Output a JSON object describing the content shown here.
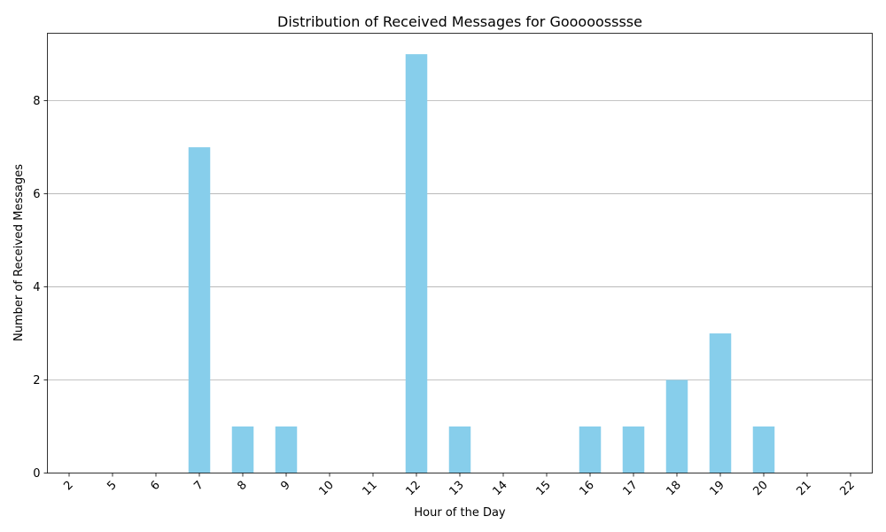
{
  "chart_data": {
    "type": "bar",
    "title": "Distribution of Received Messages for Gooooosssse",
    "xlabel": "Hour of the Day",
    "ylabel": "Number of Received Messages",
    "categories": [
      "2",
      "5",
      "6",
      "7",
      "8",
      "9",
      "10",
      "11",
      "12",
      "13",
      "14",
      "15",
      "16",
      "17",
      "18",
      "19",
      "20",
      "21",
      "22"
    ],
    "values": [
      0,
      0,
      0,
      7,
      1,
      1,
      0,
      0,
      9,
      1,
      0,
      0,
      1,
      1,
      2,
      3,
      1,
      0,
      0
    ],
    "ylim": [
      0,
      9.45
    ],
    "yticks": [
      0,
      2,
      4,
      6,
      8
    ],
    "grid": "y",
    "bar_color": "#87CEEB",
    "grid_color": "#b0b0b0"
  }
}
